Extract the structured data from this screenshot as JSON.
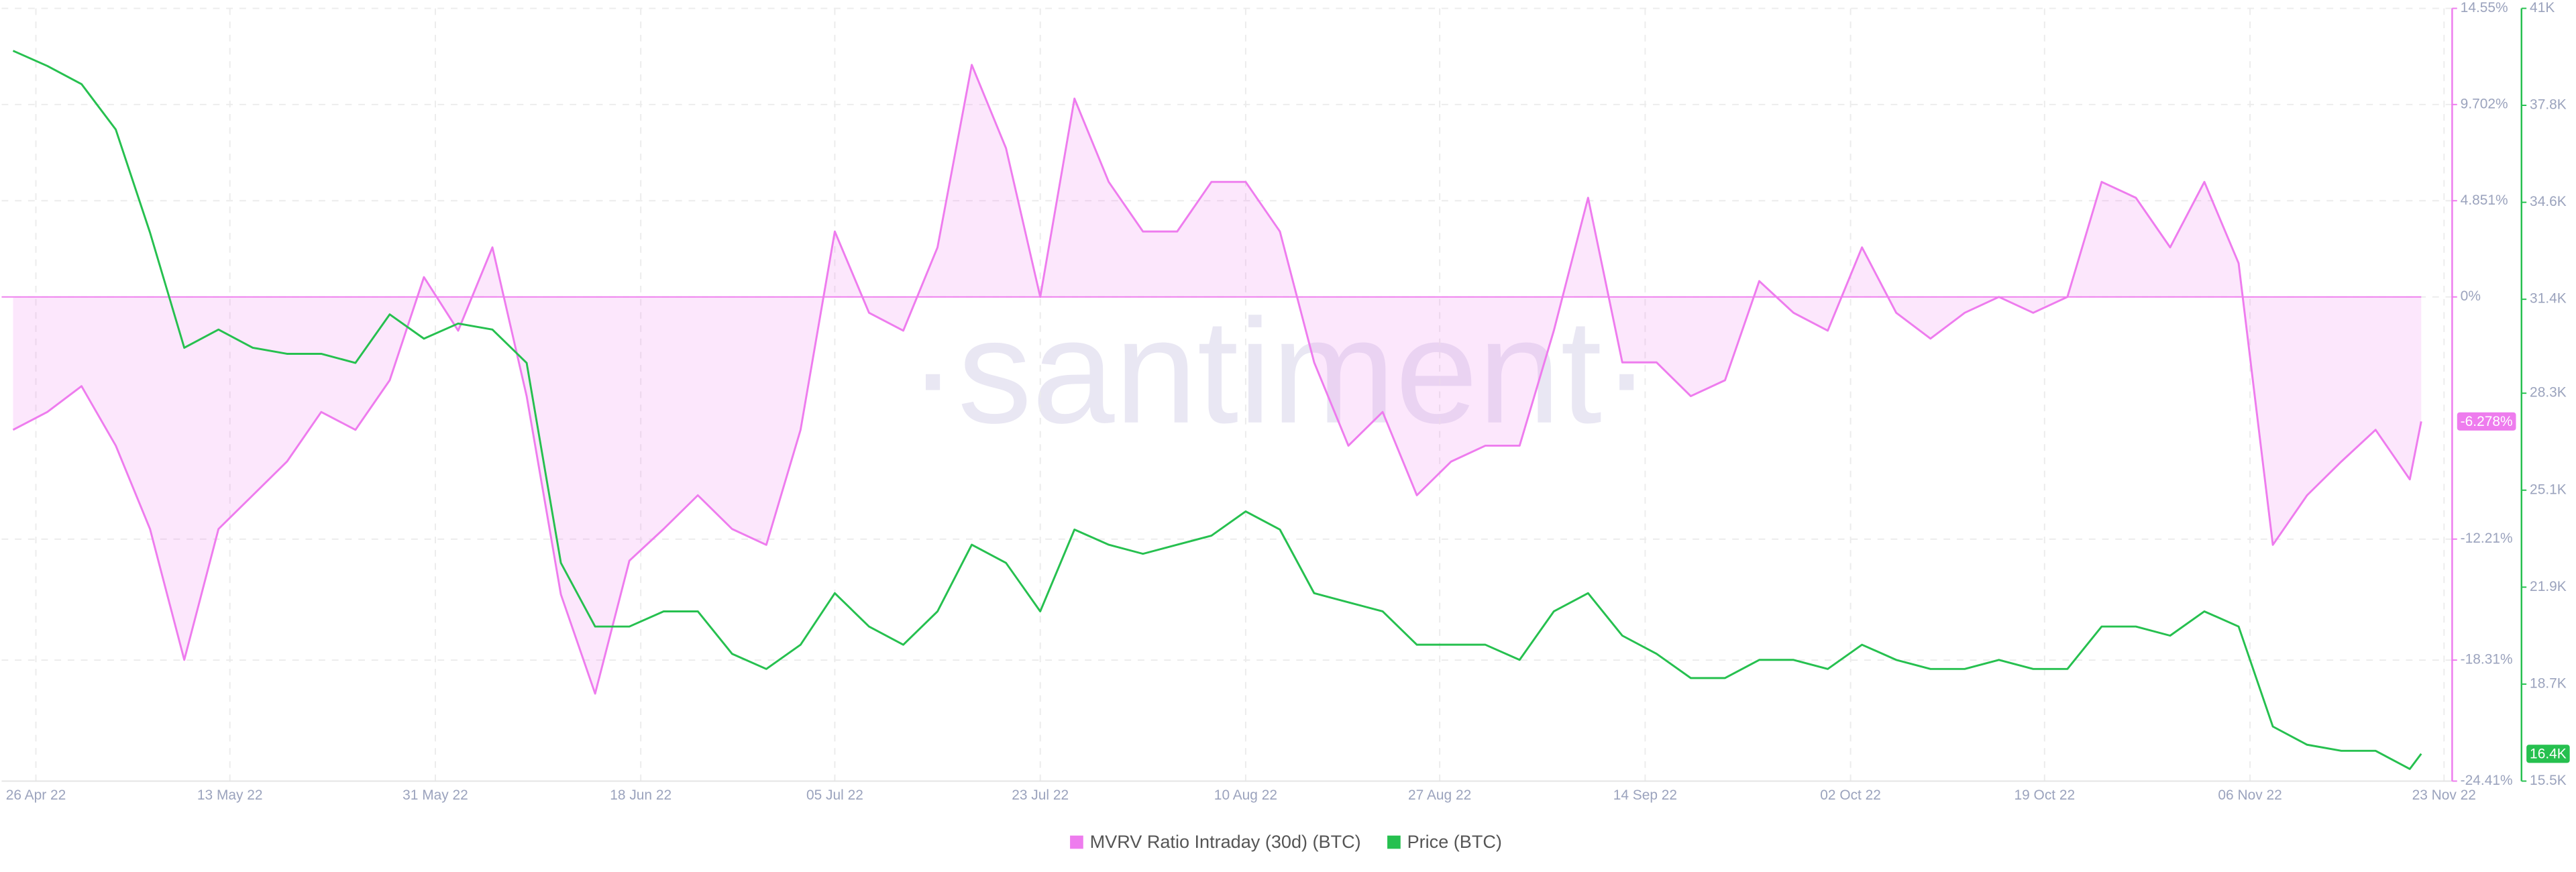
{
  "chart_data": {
    "type": "line",
    "watermark": "·santiment·",
    "x": [
      "2022-04-24",
      "2022-04-27",
      "2022-04-30",
      "2022-05-03",
      "2022-05-06",
      "2022-05-09",
      "2022-05-12",
      "2022-05-15",
      "2022-05-18",
      "2022-05-21",
      "2022-05-24",
      "2022-05-27",
      "2022-05-30",
      "2022-06-02",
      "2022-06-05",
      "2022-06-08",
      "2022-06-11",
      "2022-06-14",
      "2022-06-17",
      "2022-06-20",
      "2022-06-23",
      "2022-06-26",
      "2022-06-29",
      "2022-07-02",
      "2022-07-05",
      "2022-07-08",
      "2022-07-11",
      "2022-07-14",
      "2022-07-17",
      "2022-07-20",
      "2022-07-23",
      "2022-07-26",
      "2022-07-29",
      "2022-08-01",
      "2022-08-04",
      "2022-08-07",
      "2022-08-10",
      "2022-08-13",
      "2022-08-16",
      "2022-08-19",
      "2022-08-22",
      "2022-08-25",
      "2022-08-28",
      "2022-08-31",
      "2022-09-03",
      "2022-09-06",
      "2022-09-09",
      "2022-09-12",
      "2022-09-15",
      "2022-09-18",
      "2022-09-21",
      "2022-09-24",
      "2022-09-27",
      "2022-09-30",
      "2022-10-03",
      "2022-10-06",
      "2022-10-09",
      "2022-10-12",
      "2022-10-15",
      "2022-10-18",
      "2022-10-21",
      "2022-10-24",
      "2022-10-27",
      "2022-10-30",
      "2022-11-02",
      "2022-11-05",
      "2022-11-08",
      "2022-11-11",
      "2022-11-14",
      "2022-11-17",
      "2022-11-20",
      "2022-11-21"
    ],
    "xlim": [
      "2022-04-23",
      "2022-11-24"
    ],
    "xticks": [
      {
        "value": "2022-04-26",
        "label": "26 Apr 22"
      },
      {
        "value": "2022-05-13",
        "label": "13 May 22"
      },
      {
        "value": "2022-05-31",
        "label": "31 May 22"
      },
      {
        "value": "2022-06-18",
        "label": "18 Jun 22"
      },
      {
        "value": "2022-07-05",
        "label": "05 Jul 22"
      },
      {
        "value": "2022-07-23",
        "label": "23 Jul 22"
      },
      {
        "value": "2022-08-10",
        "label": "10 Aug 22"
      },
      {
        "value": "2022-08-27",
        "label": "27 Aug 22"
      },
      {
        "value": "2022-09-14",
        "label": "14 Sep 22"
      },
      {
        "value": "2022-10-02",
        "label": "02 Oct 22"
      },
      {
        "value": "2022-10-19",
        "label": "19 Oct 22"
      },
      {
        "value": "2022-11-06",
        "label": "06 Nov 22"
      },
      {
        "value": "2022-11-23",
        "label": "23 Nov 22"
      }
    ],
    "ylim": [
      -24.41,
      14.55
    ],
    "yticks": [
      {
        "value": 14.55,
        "label": "14.55%"
      },
      {
        "value": 9.702,
        "label": "9.702%"
      },
      {
        "value": 4.851,
        "label": "4.851%"
      },
      {
        "value": 0,
        "label": "0%"
      },
      {
        "value": -12.21,
        "label": "-12.21%"
      },
      {
        "value": -18.31,
        "label": "-18.31%"
      },
      {
        "value": -24.41,
        "label": "-24.41%"
      }
    ],
    "y2lim": [
      15500,
      41000
    ],
    "y2ticks": [
      {
        "value": 41000,
        "label": "41K"
      },
      {
        "value": 37800,
        "label": "37.8K"
      },
      {
        "value": 34600,
        "label": "34.6K"
      },
      {
        "value": 31400,
        "label": "31.4K"
      },
      {
        "value": 28300,
        "label": "28.3K"
      },
      {
        "value": 25100,
        "label": "25.1K"
      },
      {
        "value": 21900,
        "label": "21.9K"
      },
      {
        "value": 18700,
        "label": "18.7K"
      },
      {
        "value": 15500,
        "label": "15.5K"
      }
    ],
    "grid": true,
    "legend": "bottom",
    "series": [
      {
        "name": "MVRV Ratio Intraday (30d) (BTC)",
        "color": "#ee7cee",
        "area": true,
        "values": [
          -6.7,
          -5.8,
          -4.5,
          -7.5,
          -11.7,
          -18.3,
          -11.7,
          -10,
          -8.3,
          -5.8,
          -6.7,
          -4.2,
          1,
          -1.7,
          2.5,
          -5,
          -15,
          -20,
          -13.3,
          -11.7,
          -10,
          -11.7,
          -12.5,
          -6.7,
          3.3,
          -0.8,
          -1.7,
          2.5,
          11.7,
          7.5,
          0,
          10,
          5.8,
          3.3,
          3.3,
          5.8,
          5.8,
          3.3,
          -3.3,
          -7.5,
          -5.8,
          -10,
          -8.3,
          -7.5,
          -7.5,
          -1.7,
          5,
          -3.3,
          -3.3,
          -5,
          -4.2,
          0.8,
          -0.8,
          -1.7,
          2.5,
          -0.8,
          -2.1,
          -0.8,
          0,
          -0.8,
          0,
          5.8,
          5,
          2.5,
          5.8,
          1.7,
          -12.5,
          -10,
          -8.3,
          -6.7,
          -9.2,
          -6.278
        ],
        "value_labels": [
          null,
          null,
          null,
          null,
          null,
          null,
          null,
          null,
          null,
          null,
          null,
          null,
          null,
          null,
          null,
          null,
          null,
          null,
          null,
          null,
          null,
          null,
          null,
          null,
          null,
          null,
          null,
          null,
          null,
          null,
          null,
          null,
          null,
          null,
          null,
          null,
          null,
          null,
          null,
          null,
          null,
          null,
          null,
          null,
          null,
          null,
          null,
          null,
          null,
          null,
          null,
          null,
          null,
          null,
          null,
          null,
          null,
          null,
          null,
          null,
          null,
          null,
          null,
          null,
          null,
          null,
          null,
          null,
          null,
          null,
          null,
          "-6.278%"
        ]
      },
      {
        "name": "Price (BTC)",
        "color": "#26c04f",
        "axis": "y2",
        "values": [
          39600,
          39100,
          38500,
          37000,
          33600,
          29800,
          30400,
          29800,
          29600,
          29600,
          29300,
          30900,
          30100,
          30600,
          30400,
          29300,
          22700,
          20600,
          20600,
          21100,
          21100,
          19700,
          19200,
          20000,
          21700,
          20600,
          20000,
          21100,
          23300,
          22700,
          21100,
          23800,
          23300,
          23000,
          23300,
          23600,
          24400,
          23800,
          21700,
          21400,
          21100,
          20000,
          20000,
          20000,
          19500,
          21100,
          21700,
          20300,
          19700,
          18900,
          18900,
          19500,
          19500,
          19200,
          20000,
          19500,
          19200,
          19200,
          19500,
          19200,
          19200,
          20600,
          20600,
          20300,
          21100,
          20600,
          17300,
          16700,
          16500,
          16500,
          15900,
          16400
        ],
        "value_labels": [
          null,
          null,
          null,
          null,
          null,
          null,
          null,
          null,
          null,
          null,
          null,
          null,
          null,
          null,
          null,
          null,
          null,
          null,
          null,
          null,
          null,
          null,
          null,
          null,
          null,
          null,
          null,
          null,
          null,
          null,
          null,
          null,
          null,
          null,
          null,
          null,
          null,
          null,
          null,
          null,
          null,
          null,
          null,
          null,
          null,
          null,
          null,
          null,
          null,
          null,
          null,
          null,
          null,
          null,
          null,
          null,
          null,
          null,
          null,
          null,
          null,
          null,
          null,
          null,
          null,
          null,
          null,
          null,
          null,
          null,
          null,
          "16.4K"
        ]
      }
    ]
  }
}
